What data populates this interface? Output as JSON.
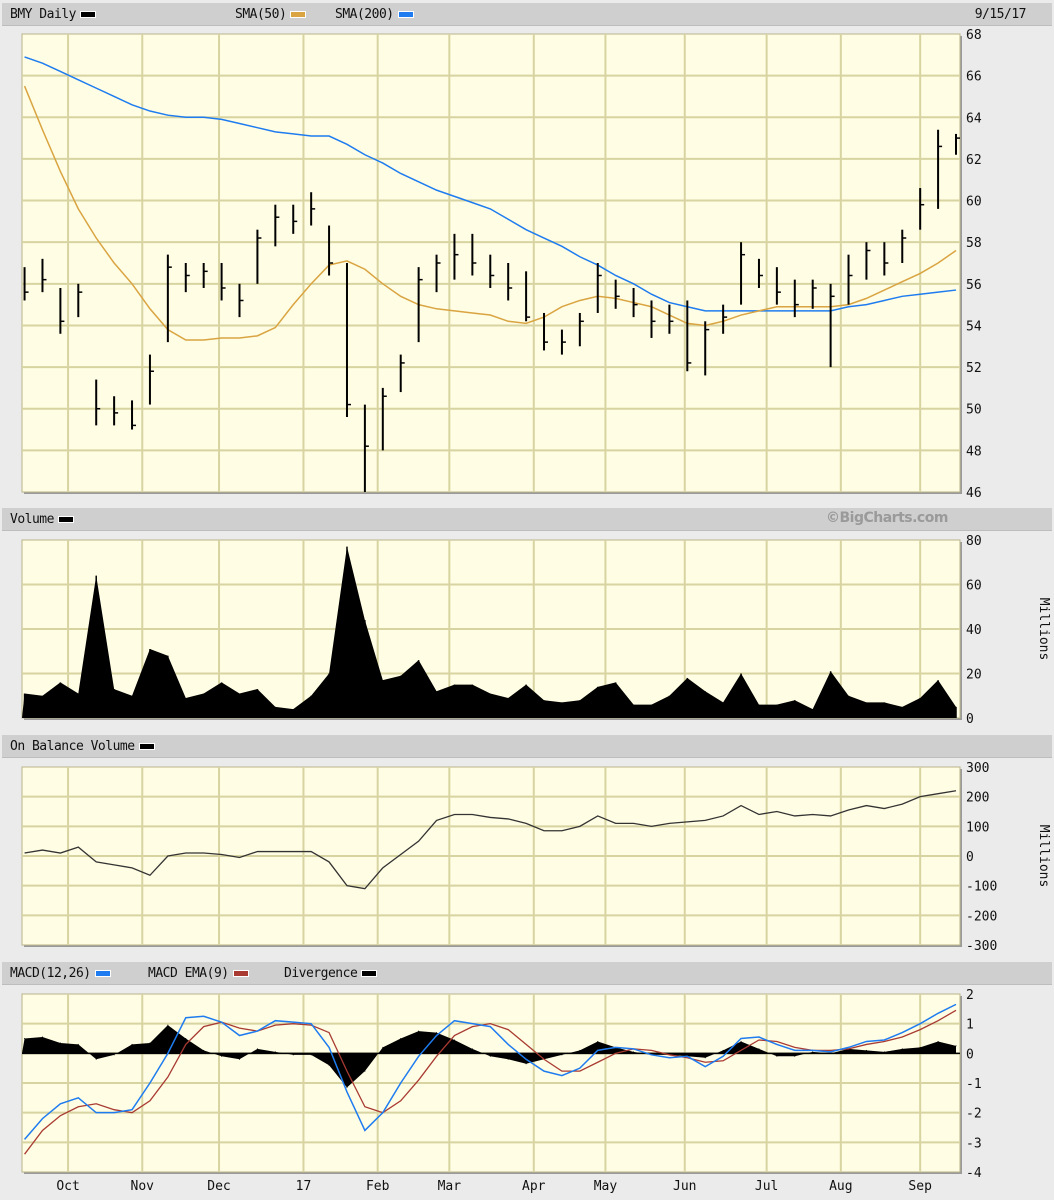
{
  "header": {
    "symbol_label": "BMY Daily",
    "sma50_label": "SMA(50)",
    "sma200_label": "SMA(200)",
    "date": "9/15/17"
  },
  "volume_header": {
    "label": "Volume",
    "copyright": "©BigCharts.com"
  },
  "obv_header": {
    "label": "On Balance Volume"
  },
  "macd_header": {
    "macd_label": "MACD(12,26)",
    "ema_label": "MACD EMA(9)",
    "divergence_label": "Divergence"
  },
  "colors": {
    "price": "#000000",
    "sma50": "#d9a441",
    "sma200": "#1e7cf0",
    "macd": "#1e7cf0",
    "macd_ema": "#a83a32",
    "divergence": "#000000",
    "plot_bg": "#fffde3",
    "grid": "#d8d4a2"
  },
  "chart_data": [
    {
      "type": "bar",
      "title": "BMY Daily",
      "dates": [
        "2016-09-16",
        "2016-09-23",
        "2016-09-30",
        "2016-10-07",
        "2016-10-14",
        "2016-10-21",
        "2016-10-28",
        "2016-11-04",
        "2016-11-11",
        "2016-11-18",
        "2016-11-25",
        "2016-12-02",
        "2016-12-09",
        "2016-12-16",
        "2016-12-23",
        "2016-12-30",
        "2017-01-06",
        "2017-01-13",
        "2017-01-20",
        "2017-01-27",
        "2017-02-03",
        "2017-02-10",
        "2017-02-17",
        "2017-02-24",
        "2017-03-03",
        "2017-03-10",
        "2017-03-17",
        "2017-03-24",
        "2017-03-31",
        "2017-04-07",
        "2017-04-14",
        "2017-04-21",
        "2017-04-28",
        "2017-05-05",
        "2017-05-12",
        "2017-05-19",
        "2017-05-26",
        "2017-06-02",
        "2017-06-09",
        "2017-06-16",
        "2017-06-23",
        "2017-06-30",
        "2017-07-07",
        "2017-07-14",
        "2017-07-21",
        "2017-07-28",
        "2017-08-04",
        "2017-08-11",
        "2017-08-18",
        "2017-08-25",
        "2017-09-01",
        "2017-09-08",
        "2017-09-15"
      ],
      "high": [
        56.8,
        57.2,
        55.8,
        56,
        51.4,
        50.6,
        50.4,
        52.6,
        57.4,
        57,
        57,
        57,
        56,
        58.6,
        59.8,
        59.8,
        60.4,
        58.8,
        57,
        50.2,
        51,
        52.6,
        56.8,
        57.4,
        58.4,
        58.4,
        57.4,
        57,
        56.6,
        54.6,
        53.8,
        54.6,
        57,
        56.2,
        55.8,
        55.2,
        55,
        55.2,
        54.2,
        55,
        58,
        57.2,
        56.8,
        56.2,
        56.2,
        56,
        57.4,
        58,
        58,
        58.6,
        60.6,
        63.4,
        63.2
      ],
      "low": [
        55.2,
        55.6,
        53.6,
        54.4,
        49.2,
        49.2,
        49,
        50.2,
        53.2,
        55.6,
        55.8,
        55.2,
        54.4,
        56,
        57.8,
        58.4,
        58.8,
        56.4,
        49.6,
        46,
        48,
        50.8,
        53.2,
        55.6,
        56.2,
        56.4,
        55.8,
        55.2,
        54.2,
        52.8,
        52.6,
        53,
        54.6,
        54.8,
        54.4,
        53.4,
        53.6,
        51.8,
        51.6,
        53.6,
        55,
        55.8,
        55,
        54.4,
        54.8,
        52,
        55,
        56.2,
        56.4,
        57,
        58.6,
        59.6,
        62.2
      ],
      "close": [
        55.6,
        56.2,
        54.2,
        55.6,
        50,
        49.8,
        49.2,
        51.8,
        56.8,
        56.4,
        56.6,
        55.8,
        55.2,
        58.2,
        59.2,
        59,
        59.6,
        57,
        50.2,
        48.2,
        50.6,
        52.2,
        56.2,
        57,
        57.4,
        57,
        56.4,
        55.8,
        54.4,
        53.2,
        53.2,
        54.2,
        56.4,
        55.4,
        55,
        54.2,
        54.2,
        52.2,
        53.8,
        54.4,
        57.4,
        56.4,
        55.6,
        55,
        55.8,
        55.4,
        56.4,
        57.6,
        57,
        58.2,
        59.8,
        62.6,
        63
      ],
      "series": [
        {
          "name": "SMA(50)",
          "values": [
            65.5,
            63.4,
            61.4,
            59.6,
            58.2,
            57,
            56,
            54.8,
            53.8,
            53.3,
            53.3,
            53.4,
            53.4,
            53.5,
            53.9,
            55,
            56,
            56.9,
            57.1,
            56.7,
            56,
            55.4,
            55,
            54.8,
            54.7,
            54.6,
            54.5,
            54.2,
            54.1,
            54.4,
            54.9,
            55.2,
            55.4,
            55.3,
            55.1,
            54.9,
            54.5,
            54.1,
            54,
            54.2,
            54.5,
            54.7,
            54.9,
            54.9,
            54.9,
            54.9,
            55,
            55.3,
            55.7,
            56.1,
            56.5,
            57,
            57.6
          ]
        },
        {
          "name": "SMA(200)",
          "values": [
            66.9,
            66.6,
            66.2,
            65.8,
            65.4,
            65,
            64.6,
            64.3,
            64.1,
            64,
            64,
            63.9,
            63.7,
            63.5,
            63.3,
            63.2,
            63.1,
            63.1,
            62.7,
            62.2,
            61.8,
            61.3,
            60.9,
            60.5,
            60.2,
            59.9,
            59.6,
            59.1,
            58.6,
            58.2,
            57.8,
            57.3,
            56.9,
            56.4,
            56,
            55.5,
            55.1,
            54.9,
            54.7,
            54.7,
            54.7,
            54.7,
            54.7,
            54.7,
            54.7,
            54.7,
            54.9,
            55,
            55.2,
            55.4,
            55.5,
            55.6,
            55.7
          ]
        }
      ],
      "ylim": [
        46,
        68
      ],
      "yticks": [
        46,
        48,
        50,
        52,
        54,
        56,
        58,
        60,
        62,
        64,
        66,
        68
      ],
      "xticks": [
        {
          "label": "Oct",
          "date": "2016-10-03"
        },
        {
          "label": "Nov",
          "date": "2016-11-01"
        },
        {
          "label": "Dec",
          "date": "2016-12-01"
        },
        {
          "label": "17",
          "date": "2017-01-03"
        },
        {
          "label": "Feb",
          "date": "2017-02-01"
        },
        {
          "label": "Mar",
          "date": "2017-03-01"
        },
        {
          "label": "Apr",
          "date": "2017-04-03"
        },
        {
          "label": "May",
          "date": "2017-05-01"
        },
        {
          "label": "Jun",
          "date": "2017-06-01"
        },
        {
          "label": "Jul",
          "date": "2017-07-03"
        },
        {
          "label": "Aug",
          "date": "2017-08-01"
        },
        {
          "label": "Sep",
          "date": "2017-09-01"
        }
      ],
      "grid": true
    },
    {
      "type": "area",
      "title": "Volume",
      "ylabel": "Millions",
      "values": [
        11,
        10,
        16,
        11,
        64,
        13,
        10,
        31,
        28,
        9,
        11,
        16,
        11,
        13,
        5,
        4,
        10,
        20,
        77,
        44,
        17,
        19,
        26,
        12,
        15,
        15,
        11,
        9,
        15,
        8,
        7,
        8,
        14,
        16,
        6,
        6,
        10,
        18,
        12,
        7,
        20,
        6,
        6,
        8,
        4,
        21,
        10,
        7,
        7,
        5,
        9,
        17,
        5
      ],
      "ylim": [
        0,
        80
      ],
      "yticks": [
        0,
        20,
        40,
        60,
        80
      ],
      "grid": true
    },
    {
      "type": "line",
      "title": "On Balance Volume",
      "ylabel": "Millions",
      "values": [
        10,
        20,
        10,
        30,
        -20,
        -30,
        -40,
        -65,
        0,
        10,
        10,
        5,
        -5,
        15,
        15,
        15,
        15,
        -20,
        -100,
        -110,
        -40,
        5,
        50,
        120,
        140,
        140,
        130,
        125,
        110,
        85,
        85,
        100,
        135,
        110,
        110,
        100,
        110,
        115,
        120,
        135,
        170,
        140,
        150,
        135,
        140,
        135,
        155,
        170,
        160,
        175,
        200,
        210,
        220
      ],
      "ylim": [
        -300,
        300
      ],
      "yticks": [
        -300,
        -200,
        -100,
        0,
        100,
        200,
        300
      ],
      "grid": true
    },
    {
      "type": "line",
      "title": "MACD(12,26)",
      "series": [
        {
          "name": "MACD(12,26)",
          "values": [
            -2.9,
            -2.2,
            -1.7,
            -1.5,
            -2,
            -2,
            -1.9,
            -1,
            0,
            1.2,
            1.25,
            1.05,
            0.6,
            0.75,
            1.1,
            1.05,
            1,
            0.2,
            -1.3,
            -2.6,
            -2,
            -1,
            -0.1,
            0.6,
            1.1,
            1,
            0.9,
            0.3,
            -0.2,
            -0.6,
            -0.75,
            -0.5,
            0.1,
            0.2,
            0.15,
            -0.05,
            -0.15,
            -0.1,
            -0.45,
            -0.1,
            0.5,
            0.55,
            0.3,
            0.1,
            0.1,
            0.05,
            0.2,
            0.4,
            0.45,
            0.7,
            1,
            1.35,
            1.65
          ]
        },
        {
          "name": "MACD EMA(9)",
          "values": [
            -3.4,
            -2.6,
            -2.1,
            -1.8,
            -1.7,
            -1.9,
            -2,
            -1.6,
            -0.8,
            0.3,
            0.9,
            1.05,
            0.85,
            0.75,
            0.95,
            1,
            0.95,
            0.7,
            -0.6,
            -1.8,
            -2,
            -1.6,
            -0.9,
            -0.1,
            0.6,
            0.9,
            1,
            0.8,
            0.3,
            -0.2,
            -0.6,
            -0.6,
            -0.3,
            0,
            0.15,
            0.1,
            -0.05,
            -0.15,
            -0.3,
            -0.25,
            0.1,
            0.45,
            0.4,
            0.2,
            0.1,
            0.1,
            0.15,
            0.3,
            0.4,
            0.55,
            0.8,
            1.1,
            1.45
          ]
        },
        {
          "name": "Divergence",
          "values": [
            0.5,
            0.55,
            0.35,
            0.3,
            -0.2,
            -0.05,
            0.3,
            0.35,
            0.95,
            0.5,
            0.1,
            -0.1,
            -0.2,
            0.15,
            0.05,
            -0.05,
            -0.05,
            -0.4,
            -1.15,
            -0.6,
            0.2,
            0.5,
            0.75,
            0.7,
            0.45,
            0.15,
            -0.1,
            -0.2,
            -0.35,
            -0.2,
            -0.05,
            0.1,
            0.4,
            0.2,
            0.05,
            -0.05,
            -0.05,
            -0.1,
            -0.15,
            0.1,
            0.4,
            0.15,
            -0.1,
            -0.1,
            0.05,
            0,
            0.15,
            0.1,
            0.05,
            0.15,
            0.2,
            0.4,
            0.25
          ]
        }
      ],
      "ylim": [
        -4,
        2
      ],
      "yticks": [
        -4,
        -3,
        -2,
        -1,
        0,
        1,
        2
      ],
      "grid": true
    }
  ]
}
